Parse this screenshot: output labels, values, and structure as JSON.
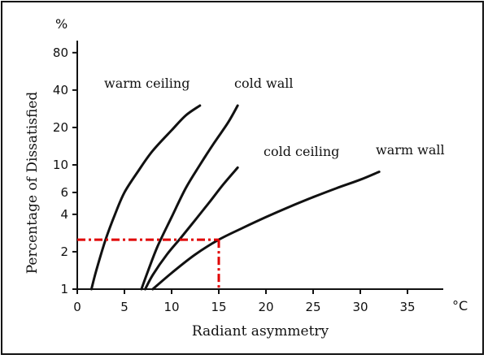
{
  "chart_data": {
    "type": "line",
    "title": "",
    "xlabel": "Radiant asymmetry",
    "ylabel": "Percentage of Dissatisfied",
    "x_unit": "°C",
    "y_unit": "%",
    "xlim": [
      0,
      40
    ],
    "ylim": [
      1,
      100
    ],
    "y_scale": "log",
    "x_ticks": [
      0,
      5,
      10,
      15,
      20,
      25,
      30,
      35
    ],
    "y_ticks": [
      1,
      2,
      4,
      6,
      10,
      20,
      40,
      80
    ],
    "grid": false,
    "series": [
      {
        "name": "warm ceiling",
        "line_color": "#111111",
        "points": [
          [
            1.5,
            1.0
          ],
          [
            2.0,
            1.4
          ],
          [
            3.0,
            2.5
          ],
          [
            4.0,
            4.0
          ],
          [
            5.0,
            6.0
          ],
          [
            6.5,
            9.0
          ],
          [
            8.0,
            13.0
          ],
          [
            10.0,
            19.0
          ],
          [
            11.5,
            25.0
          ],
          [
            13.0,
            30.0
          ]
        ]
      },
      {
        "name": "cold wall",
        "line_color": "#111111",
        "points": [
          [
            6.8,
            1.0
          ],
          [
            7.5,
            1.4
          ],
          [
            8.5,
            2.2
          ],
          [
            10.0,
            3.8
          ],
          [
            11.5,
            6.5
          ],
          [
            13.0,
            10.0
          ],
          [
            14.5,
            15.0
          ],
          [
            16.0,
            22.0
          ],
          [
            17.0,
            30.0
          ]
        ]
      },
      {
        "name": "cold ceiling",
        "line_color": "#111111",
        "points": [
          [
            7.2,
            1.0
          ],
          [
            8.0,
            1.3
          ],
          [
            9.5,
            1.9
          ],
          [
            11.0,
            2.6
          ],
          [
            12.5,
            3.6
          ],
          [
            14.0,
            5.0
          ],
          [
            15.5,
            7.0
          ],
          [
            17.0,
            9.5
          ]
        ]
      },
      {
        "name": "warm wall",
        "line_color": "#111111",
        "points": [
          [
            8.0,
            1.0
          ],
          [
            10.0,
            1.35
          ],
          [
            12.5,
            1.9
          ],
          [
            15.0,
            2.5
          ],
          [
            17.5,
            3.1
          ],
          [
            20.0,
            3.8
          ],
          [
            22.5,
            4.6
          ],
          [
            25.0,
            5.5
          ],
          [
            27.5,
            6.5
          ],
          [
            30.0,
            7.6
          ],
          [
            32.0,
            8.8
          ]
        ]
      }
    ],
    "annotation": {
      "x": 15,
      "y": 2.5,
      "color": "#e00000"
    }
  }
}
